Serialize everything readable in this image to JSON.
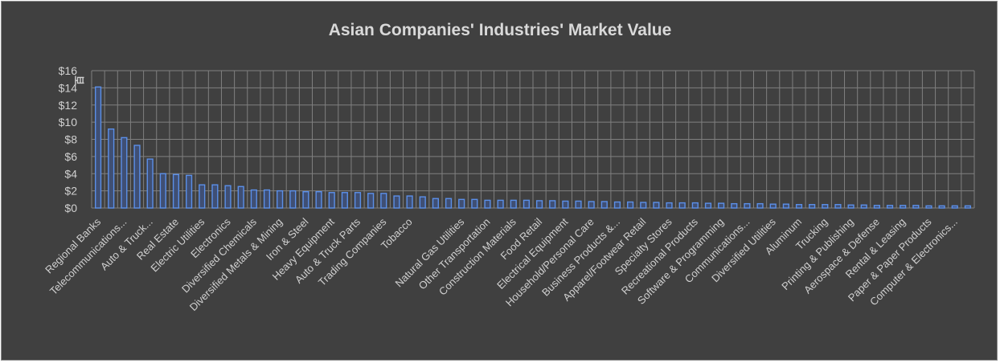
{
  "chart_data": {
    "type": "bar",
    "title": "Asian Companies' Industries' Market Value",
    "ylabel": "百",
    "ylim": [
      0,
      16
    ],
    "ytick_labels": [
      "$0",
      "$2",
      "$4",
      "$6",
      "$8",
      "$10",
      "$12",
      "$14",
      "$16"
    ],
    "grid": true,
    "colors": {
      "bar_fill": "#3f4f74",
      "bar_edge": "#5b8fe8",
      "grid": "#7f7f7f",
      "background": "#404040",
      "text": "#d0d0d0"
    },
    "categories": [
      "Regional Banks",
      "",
      "Telecommunications...",
      "",
      "Auto & Truck...",
      "",
      "Real Estate",
      "",
      "Electric Utilities",
      "",
      "Electronics",
      "",
      "Diversified Chemicals",
      "",
      "Diversified Metals & Mining",
      "",
      "Iron & Steel",
      "",
      "Heavy Equipment",
      "",
      "Auto & Truck Parts",
      "",
      "Trading Companies",
      "",
      "Tobacco",
      "",
      "",
      "",
      "Natural Gas Utilities",
      "",
      "Other Transportation",
      "",
      "Construction Materials",
      "",
      "Food Retail",
      "",
      "Electrical Equipment",
      "",
      "Household/Personal Care",
      "",
      "Business Products &...",
      "",
      "Apparel/Footwear Retail",
      "",
      "Specialty Stores",
      "",
      "Recreational Products",
      "",
      "Software & Programming",
      "",
      "Communications...",
      "",
      "Diversified Utilities",
      "",
      "Aluminum",
      "",
      "Trucking",
      "",
      "Printing & Publishing",
      "",
      "Aerospace & Defense",
      "",
      "Rental & Leasing",
      "",
      "Paper & Paper Products",
      "",
      "Computer & Electronics...",
      ""
    ],
    "values": [
      14.1,
      9.2,
      8.2,
      7.3,
      5.7,
      4.0,
      3.9,
      3.8,
      2.7,
      2.7,
      2.6,
      2.5,
      2.1,
      2.1,
      2.0,
      2.0,
      1.9,
      1.9,
      1.8,
      1.8,
      1.8,
      1.7,
      1.7,
      1.4,
      1.4,
      1.3,
      1.1,
      1.1,
      1.0,
      1.0,
      0.9,
      0.9,
      0.9,
      0.9,
      0.85,
      0.85,
      0.8,
      0.8,
      0.75,
      0.75,
      0.7,
      0.7,
      0.65,
      0.65,
      0.6,
      0.6,
      0.6,
      0.55,
      0.55,
      0.5,
      0.5,
      0.5,
      0.45,
      0.45,
      0.4,
      0.4,
      0.4,
      0.4,
      0.35,
      0.35,
      0.3,
      0.3,
      0.3,
      0.3,
      0.25,
      0.25,
      0.25,
      0.25
    ]
  }
}
